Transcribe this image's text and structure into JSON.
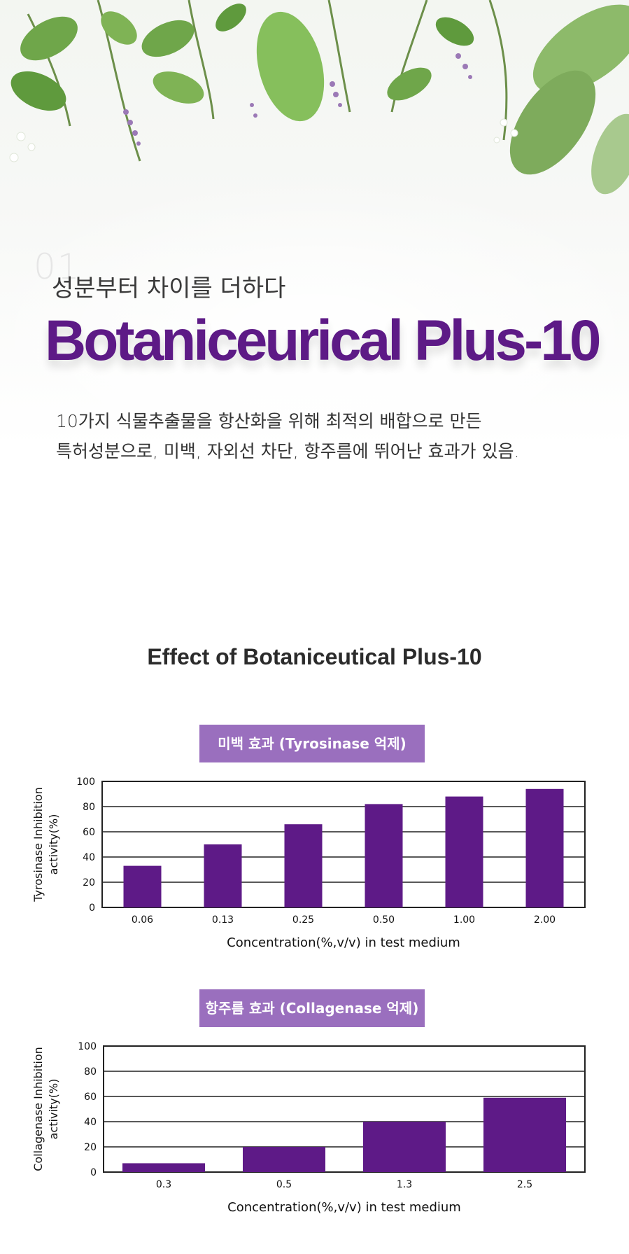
{
  "hero": {
    "number": "01",
    "subtitle": "성분부터 차이를 더하다",
    "brand": "Botaniceurical Plus-10",
    "description_lines": [
      "10가지 식물추출물을 항산화을 위해 최적의 배합으로 만든",
      "특허성분으로, 미백, 자외선 차단, 항주름에 뛰어난 효과가 있음."
    ]
  },
  "section": {
    "title": "Effect of Botaniceutical Plus-10"
  },
  "colors": {
    "bar": "#5e1a87",
    "badge": "#9a6fbe",
    "brand": "#5d1a86"
  },
  "chart_data": [
    {
      "type": "bar",
      "title": "미백 효과 (Tyrosinase 억제)",
      "ylabel": [
        "Tyrosinase Inhibition",
        "activity(%)"
      ],
      "xlabel": "Concentration(%,v/v) in test medium",
      "categories": [
        "0.06",
        "0.13",
        "0.25",
        "0.50",
        "1.00",
        "2.00"
      ],
      "values": [
        33,
        50,
        66,
        82,
        88,
        94
      ],
      "ylim": [
        0,
        100
      ],
      "yticks": [
        "0",
        "20",
        "40",
        "60",
        "80",
        "100"
      ],
      "grid": true
    },
    {
      "type": "bar",
      "title": "항주름 효과 (Collagenase 억제)",
      "ylabel": [
        "Collagenase Inhibition",
        "activity(%)"
      ],
      "xlabel": "Concentration(%,v/v) in test medium",
      "categories": [
        "0.3",
        "0.5",
        "1.3",
        "2.5"
      ],
      "values": [
        7,
        20,
        40,
        59
      ],
      "ylim": [
        0,
        100
      ],
      "yticks": [
        "0",
        "20",
        "40",
        "60",
        "80",
        "100"
      ],
      "grid": true
    }
  ]
}
